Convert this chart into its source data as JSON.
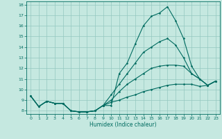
{
  "xlabel": "Humidex (Indice chaleur)",
  "xlim": [
    -0.5,
    23.5
  ],
  "ylim": [
    7.7,
    18.3
  ],
  "xticks": [
    0,
    1,
    2,
    3,
    4,
    5,
    6,
    7,
    8,
    9,
    10,
    11,
    12,
    13,
    14,
    15,
    16,
    17,
    18,
    19,
    20,
    21,
    22,
    23
  ],
  "yticks": [
    8,
    9,
    10,
    11,
    12,
    13,
    14,
    15,
    16,
    17,
    18
  ],
  "bg_color": "#c5e8e0",
  "grid_color": "#94c8bf",
  "line_color": "#006b60",
  "lines": [
    {
      "x": [
        0,
        1,
        2,
        3,
        4,
        5,
        6,
        7,
        8,
        9,
        10,
        11,
        12,
        13,
        14,
        15,
        16,
        17,
        18,
        19,
        20,
        21,
        22,
        23
      ],
      "y": [
        9.4,
        8.4,
        8.9,
        8.7,
        8.7,
        8.0,
        7.9,
        7.9,
        8.0,
        8.5,
        8.5,
        11.5,
        12.5,
        14.3,
        16.0,
        16.9,
        17.2,
        17.8,
        16.5,
        14.8,
        12.2,
        11.0,
        10.4,
        10.8
      ]
    },
    {
      "x": [
        0,
        1,
        2,
        3,
        4,
        5,
        6,
        7,
        8,
        9,
        10,
        11,
        12,
        13,
        14,
        15,
        16,
        17,
        18,
        19,
        20,
        21,
        22,
        23
      ],
      "y": [
        9.4,
        8.4,
        8.9,
        8.7,
        8.7,
        8.0,
        7.9,
        7.9,
        8.0,
        8.5,
        9.5,
        10.5,
        11.5,
        12.5,
        13.5,
        14.0,
        14.5,
        14.8,
        14.2,
        13.0,
        11.5,
        11.0,
        10.4,
        10.8
      ]
    },
    {
      "x": [
        0,
        1,
        2,
        3,
        4,
        5,
        6,
        7,
        8,
        9,
        10,
        11,
        12,
        13,
        14,
        15,
        16,
        17,
        18,
        19,
        20,
        21,
        22,
        23
      ],
      "y": [
        9.4,
        8.4,
        8.9,
        8.7,
        8.7,
        8.0,
        7.9,
        7.9,
        8.0,
        8.5,
        9.0,
        9.8,
        10.5,
        11.0,
        11.5,
        12.0,
        12.2,
        12.3,
        12.3,
        12.2,
        11.5,
        11.0,
        10.4,
        10.8
      ]
    },
    {
      "x": [
        0,
        1,
        2,
        3,
        4,
        5,
        6,
        7,
        8,
        9,
        10,
        11,
        12,
        13,
        14,
        15,
        16,
        17,
        18,
        19,
        20,
        21,
        22,
        23
      ],
      "y": [
        9.4,
        8.4,
        8.9,
        8.7,
        8.7,
        8.0,
        7.9,
        7.9,
        8.0,
        8.5,
        8.8,
        9.0,
        9.3,
        9.5,
        9.8,
        10.0,
        10.2,
        10.4,
        10.5,
        10.5,
        10.5,
        10.3,
        10.4,
        10.8
      ]
    }
  ]
}
